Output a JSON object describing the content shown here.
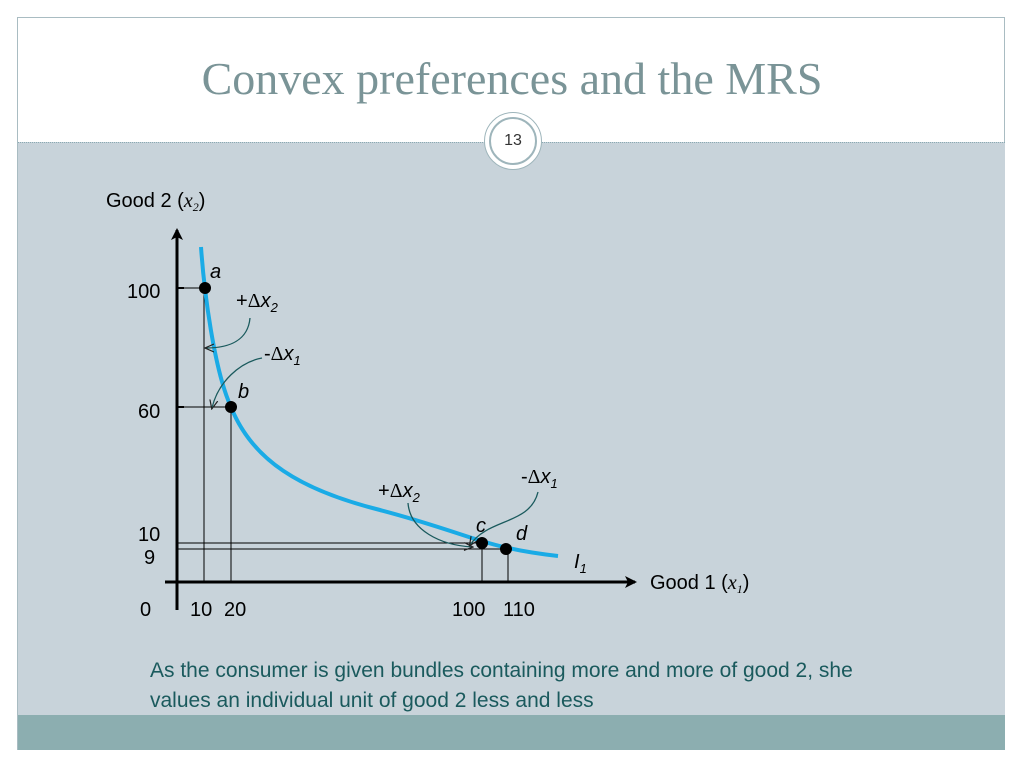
{
  "slide": {
    "title": "Convex preferences and the MRS",
    "page_number": "13",
    "caption": "As the consumer is given bundles containing more and more of good 2, she values an individual unit of good 2 less and less"
  },
  "colors": {
    "curve": "#1aabe6",
    "text_teal": "#1a5a5d",
    "title": "#7a9497",
    "panel": "#c8d3da",
    "footer": "#8caeb0"
  },
  "diagram": {
    "y_axis_label": "Good 2 (",
    "y_axis_var": "x",
    "y_axis_sub": "2",
    "y_axis_close": ")",
    "x_axis_label": "Good 1 (",
    "x_axis_var": "x",
    "x_axis_sub": "1",
    "x_axis_close": ")",
    "origin": "0",
    "y_ticks": [
      "100",
      "60",
      "10",
      "9"
    ],
    "x_ticks": [
      "10",
      "20",
      "100",
      "110"
    ],
    "points": [
      "a",
      "b",
      "c",
      "d"
    ],
    "curve_label": "I",
    "curve_label_sub": "1",
    "ann_plus_dx2_top": {
      "sign": "+",
      "delta": "Δ",
      "var": "x",
      "sub": "2"
    },
    "ann_minus_dx1_top": {
      "sign": "-",
      "delta": "Δ",
      "var": "x",
      "sub": "1"
    },
    "ann_plus_dx2_bottom": {
      "sign": "+",
      "delta": "Δ",
      "var": "x",
      "sub": "2"
    },
    "ann_minus_dx1_bottom": {
      "sign": "-",
      "delta": "Δ",
      "var": "x",
      "sub": "1"
    }
  }
}
